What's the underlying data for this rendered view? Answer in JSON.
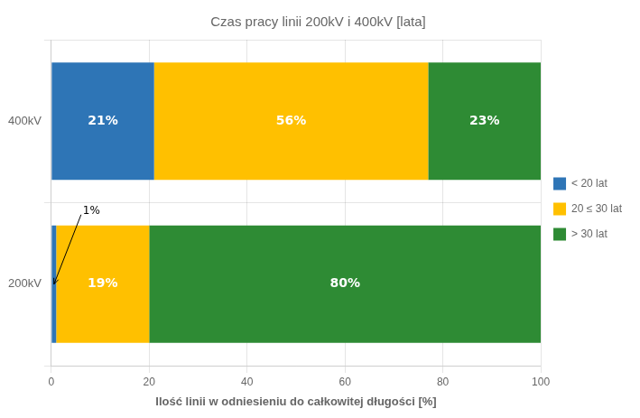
{
  "chart_data": {
    "type": "bar",
    "orientation": "horizontal",
    "stacked": true,
    "title": "Czas pracy linii 200kV i 400kV [lata]",
    "x_label": "Ilość linii w odniesieniu do całkowitej długości [%]",
    "categories": [
      "400kV",
      "200kV"
    ],
    "series": [
      {
        "name": "< 20 lat",
        "color": "#2E75B6",
        "values": [
          21,
          1
        ],
        "value_labels": [
          "21%",
          null
        ]
      },
      {
        "name": "20 ≤ 30 lat",
        "color": "#FFC000",
        "values": [
          56,
          19
        ],
        "value_labels": [
          "56%",
          "19%"
        ]
      },
      {
        "name": "> 30 lat",
        "color": "#2E8B34",
        "values": [
          23,
          80
        ],
        "value_labels": [
          "23%",
          "80%"
        ]
      }
    ],
    "xlim": [
      0,
      100
    ],
    "xticks": [
      0,
      20,
      40,
      60,
      80,
      100
    ],
    "grid": true,
    "legend": "right",
    "data_labels": true,
    "annotations": [
      {
        "text": "1%",
        "series": "< 20 lat",
        "category": "200kV"
      }
    ]
  }
}
